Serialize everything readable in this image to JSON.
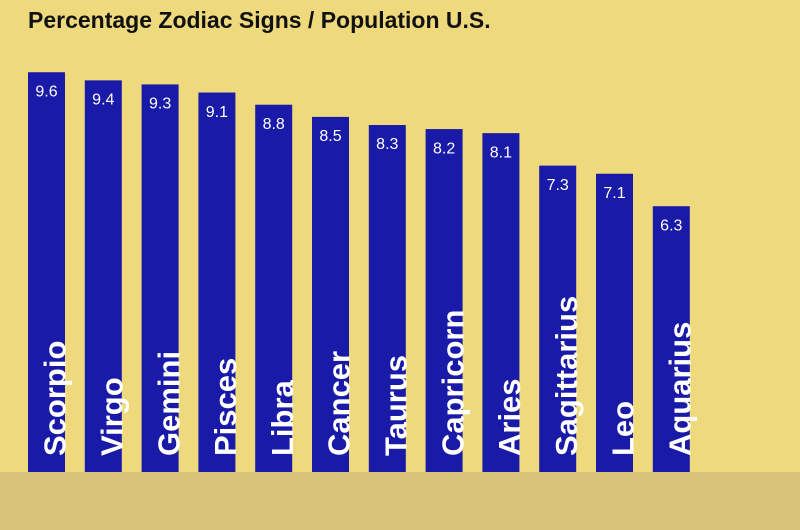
{
  "chart_data": {
    "type": "bar",
    "title": "Percentage Zodiac Signs / Population U.S.",
    "categories": [
      "Scorpio",
      "Virgo",
      "Gemini",
      "Pisces",
      "Libra",
      "Cancer",
      "Taurus",
      "Capricorn",
      "Aries",
      "Sagittarius",
      "Leo",
      "Aquarius"
    ],
    "values": [
      9.6,
      9.4,
      9.3,
      9.1,
      8.8,
      8.5,
      8.3,
      8.2,
      8.1,
      7.3,
      7.1,
      6.3
    ],
    "color": "#1a1aa8"
  }
}
